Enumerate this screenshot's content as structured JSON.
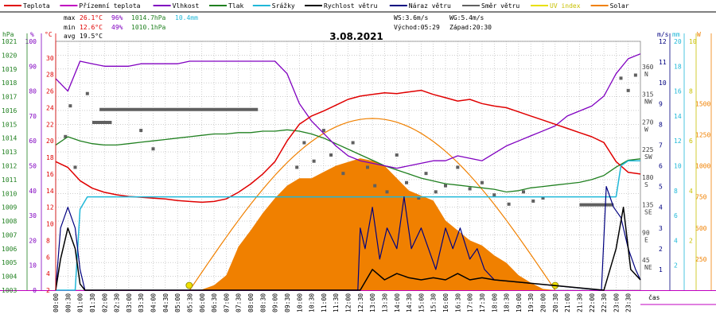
{
  "legend": [
    {
      "label": "Teplota",
      "color": "#e00000"
    },
    {
      "label": "Přízemní teplota",
      "color": "#c000c0"
    },
    {
      "label": "Vlhkost",
      "color": "#8000c0"
    },
    {
      "label": "Tlak",
      "color": "#208020"
    },
    {
      "label": "Srážky",
      "color": "#20b8d8"
    },
    {
      "label": "Rychlost větru",
      "color": "#000000"
    },
    {
      "label": "Náraz větru",
      "color": "#000080"
    },
    {
      "label": "Směr větru",
      "color": "#606060"
    },
    {
      "label": "UV index",
      "color": "#e8e000"
    },
    {
      "label": "Solar",
      "color": "#f08000"
    }
  ],
  "stats": {
    "max": {
      "label": "max",
      "temp": "26.1°C",
      "hum": "96%",
      "press": "1014.7hPa",
      "rain": "10.4mm"
    },
    "min": {
      "label": "min",
      "temp": "12.6°C",
      "hum": "49%",
      "press": "1010.1hPa"
    },
    "avg": {
      "label": "avg",
      "temp": "19.5°C"
    }
  },
  "wind_info": {
    "ws": "WS:3.6m/s",
    "wg": "WG:5.4m/s",
    "sunrise": "Východ:05:29",
    "sunset": "Západ:20:30"
  },
  "date": "3.08.2021",
  "axis_units": {
    "hpa": "hPa",
    "pct": "%",
    "degc": "°C",
    "ms": "m/s",
    "mm": "mm",
    "w": "W",
    "time": "čas"
  },
  "colors": {
    "temp": "#e00000",
    "hum": "#8000c0",
    "press": "#208020",
    "rain": "#20b8d8",
    "wind": "#000000",
    "gust": "#000080",
    "dir": "#606060",
    "solar": "#f08000",
    "uv": "#e8e000"
  },
  "chart_data": {
    "type": "line",
    "title": "3.08.2021",
    "x_ticks": [
      "00:00",
      "00:30",
      "01:00",
      "01:30",
      "02:00",
      "02:30",
      "03:00",
      "03:30",
      "04:00",
      "04:30",
      "05:00",
      "05:30",
      "06:00",
      "06:30",
      "07:00",
      "07:30",
      "08:00",
      "08:30",
      "09:00",
      "09:30",
      "10:00",
      "10:30",
      "11:00",
      "11:30",
      "12:00",
      "12:30",
      "13:00",
      "13:30",
      "14:00",
      "14:30",
      "15:00",
      "15:30",
      "16:00",
      "16:30",
      "17:00",
      "17:30",
      "18:00",
      "18:30",
      "19:00",
      "19:30",
      "20:00",
      "20:30",
      "21:00",
      "21:30",
      "22:00",
      "22:30",
      "23:00",
      "23:30"
    ],
    "axes": {
      "pressure_hpa": {
        "min": 1003,
        "max": 1021,
        "ticks": [
          "1021",
          "1020",
          "1019",
          "1018",
          "1017",
          "1016",
          "1015",
          "1014",
          "1013",
          "1012",
          "1011",
          "1010",
          "1009",
          "1008",
          "1007",
          "1006",
          "1005",
          "1004",
          "1003"
        ]
      },
      "humidity_pct": {
        "min": 0,
        "max": 100,
        "ticks": [
          "100",
          "90",
          "80",
          "70",
          "60",
          "50",
          "40",
          "30",
          "20",
          "10",
          "0"
        ]
      },
      "temperature_c": {
        "min": 2,
        "max": 32,
        "ticks": [
          "30",
          "28",
          "26",
          "24",
          "22",
          "20",
          "18",
          "16",
          "14",
          "12",
          "10",
          "8",
          "6",
          "4",
          "2"
        ]
      },
      "direction": {
        "ticks": [
          "360 N",
          "315 NW",
          "270 W",
          "225 SW",
          "180 S",
          "135 SE",
          "90 E",
          "45 NE"
        ]
      },
      "wind_ms": {
        "min": 0,
        "max": 12,
        "ticks": [
          "12",
          "11",
          "10",
          "9",
          "8",
          "7",
          "6",
          "5",
          "4",
          "3",
          "2",
          "1"
        ]
      },
      "rain_mm": {
        "min": 0,
        "max": 20,
        "ticks": [
          "20",
          "18",
          "16",
          "14",
          "12",
          "10",
          "8",
          "6",
          "4",
          "2"
        ]
      },
      "uv_index": {
        "min": 0,
        "max": 10,
        "ticks": [
          "10",
          "8",
          "6",
          "4",
          "2"
        ]
      },
      "solar_w": {
        "min": 0,
        "max": 2000,
        "ticks": [
          "1500",
          "1250",
          "1000",
          "750",
          "500",
          "250"
        ]
      }
    },
    "series": [
      {
        "name": "Teplota",
        "unit": "°C",
        "x": [
          0,
          0.5,
          1,
          1.5,
          2,
          2.5,
          3,
          3.5,
          4,
          4.5,
          5,
          5.5,
          6,
          6.5,
          7,
          7.5,
          8,
          8.5,
          9,
          9.5,
          10,
          10.5,
          11,
          11.5,
          12,
          12.5,
          13,
          13.5,
          14,
          14.5,
          15,
          15.5,
          16,
          16.5,
          17,
          17.5,
          18,
          18.5,
          19,
          19.5,
          20,
          20.5,
          21,
          21.5,
          22,
          22.5,
          23,
          23.5,
          24
        ],
        "y": [
          17.5,
          16.8,
          15.2,
          14.3,
          13.8,
          13.5,
          13.3,
          13.2,
          13.1,
          13.0,
          12.8,
          12.7,
          12.6,
          12.7,
          13.0,
          13.8,
          14.8,
          16.0,
          17.5,
          20.0,
          22.0,
          23.0,
          23.6,
          24.3,
          25.0,
          25.4,
          25.6,
          25.8,
          25.7,
          25.9,
          26.1,
          25.6,
          25.2,
          24.8,
          25.0,
          24.5,
          24.2,
          24.0,
          23.5,
          23.0,
          22.5,
          22.0,
          21.5,
          21.0,
          20.5,
          19.8,
          17.5,
          16.2,
          16.0
        ]
      },
      {
        "name": "Vlhkost",
        "unit": "%",
        "x": [
          0,
          0.5,
          1,
          1.5,
          2,
          2.5,
          3,
          3.5,
          4,
          4.5,
          5,
          5.5,
          6,
          6.5,
          7,
          7.5,
          8,
          8.5,
          9,
          9.5,
          10,
          10.5,
          11,
          11.5,
          12,
          12.5,
          13,
          13.5,
          14,
          14.5,
          15,
          15.5,
          16,
          16.5,
          17,
          17.5,
          18,
          18.5,
          19,
          19.5,
          20,
          20.5,
          21,
          21.5,
          22,
          22.5,
          23,
          23.5,
          24
        ],
        "y": [
          85,
          80,
          92,
          91,
          90,
          90,
          90,
          91,
          91,
          91,
          91,
          92,
          92,
          92,
          92,
          92,
          92,
          92,
          92,
          87,
          75,
          68,
          63,
          58,
          54,
          52,
          51,
          50,
          49,
          50,
          51,
          52,
          52,
          54,
          53,
          52,
          55,
          58,
          60,
          62,
          64,
          66,
          70,
          72,
          74,
          78,
          87,
          93,
          95
        ]
      },
      {
        "name": "Tlak",
        "unit": "hPa",
        "x": [
          0,
          0.5,
          1,
          1.5,
          2,
          2.5,
          3,
          3.5,
          4,
          4.5,
          5,
          5.5,
          6,
          6.5,
          7,
          7.5,
          8,
          8.5,
          9,
          9.5,
          10,
          10.5,
          11,
          11.5,
          12,
          12.5,
          13,
          13.5,
          14,
          14.5,
          15,
          15.5,
          16,
          16.5,
          17,
          17.5,
          18,
          18.5,
          19,
          19.5,
          20,
          20.5,
          21,
          21.5,
          22,
          22.5,
          23,
          23.5,
          24
        ],
        "y": [
          1013.5,
          1014.1,
          1013.8,
          1013.6,
          1013.5,
          1013.5,
          1013.6,
          1013.7,
          1013.8,
          1013.9,
          1014.0,
          1014.1,
          1014.2,
          1014.3,
          1014.3,
          1014.4,
          1014.4,
          1014.5,
          1014.5,
          1014.6,
          1014.5,
          1014.3,
          1014.0,
          1013.6,
          1013.2,
          1012.8,
          1012.4,
          1012.0,
          1011.7,
          1011.4,
          1011.1,
          1010.9,
          1010.7,
          1010.6,
          1010.5,
          1010.4,
          1010.3,
          1010.1,
          1010.2,
          1010.4,
          1010.5,
          1010.6,
          1010.7,
          1010.8,
          1011.0,
          1011.3,
          1011.9,
          1012.4,
          1012.5
        ]
      },
      {
        "name": "Srážky",
        "unit": "mm",
        "x": [
          0,
          0.8,
          1.0,
          1.3,
          23.0,
          23.2,
          23.5,
          24
        ],
        "y": [
          0,
          0,
          6.5,
          7.5,
          7.5,
          10.0,
          10.4,
          10.4
        ]
      },
      {
        "name": "Rychlost větru",
        "unit": "m/s",
        "x": [
          0,
          0.2,
          0.5,
          0.8,
          1.0,
          1.2,
          12.5,
          13,
          13.5,
          14,
          14.5,
          15,
          15.5,
          16,
          16.5,
          17,
          17.5,
          18,
          22.5,
          23,
          23.3,
          23.6,
          24
        ],
        "y": [
          0,
          1.5,
          3,
          2,
          0.3,
          0,
          0,
          1,
          0.5,
          0.8,
          0.6,
          0.5,
          0.6,
          0.5,
          0.8,
          0.5,
          0.6,
          0.5,
          0,
          2,
          4,
          1,
          0.5
        ]
      },
      {
        "name": "Náraz větru",
        "unit": "m/s",
        "x": [
          0,
          0.2,
          0.5,
          0.8,
          1.0,
          1.2,
          12.4,
          12.5,
          12.7,
          13,
          13.3,
          13.6,
          14,
          14.3,
          14.6,
          15,
          15.3,
          15.6,
          16,
          16.3,
          16.6,
          17,
          17.3,
          17.6,
          18,
          22.4,
          22.6,
          22.9,
          23.2,
          23.5,
          23.8,
          24
        ],
        "y": [
          0,
          3,
          4,
          3,
          1,
          0,
          0,
          3,
          2,
          4,
          1.5,
          3,
          2,
          4.5,
          2,
          3,
          2,
          1,
          3,
          2,
          3,
          1.5,
          2,
          1,
          0.5,
          0,
          5,
          4,
          3.5,
          2,
          1,
          0.5
        ]
      },
      {
        "name": "Solar",
        "unit": "W",
        "x": [
          5.5,
          6,
          6.5,
          7,
          7.5,
          8,
          8.5,
          9,
          9.5,
          10,
          10.5,
          11,
          11.5,
          12,
          12.5,
          13,
          13.5,
          14,
          14.5,
          15,
          15.5,
          16,
          16.5,
          17,
          17.5,
          18,
          18.5,
          19,
          19.5,
          20,
          20.5
        ],
        "y": [
          0,
          5,
          40,
          120,
          350,
          480,
          620,
          740,
          840,
          900,
          900,
          950,
          1000,
          1030,
          1060,
          1040,
          1000,
          900,
          800,
          760,
          720,
          560,
          480,
          400,
          360,
          280,
          220,
          120,
          60,
          10,
          0
        ]
      },
      {
        "name": "Směr větru",
        "unit": "°",
        "x": [
          1.8,
          8.3,
          21.5,
          22.9
        ],
        "y": [
          294,
          294,
          139,
          139
        ]
      }
    ]
  }
}
